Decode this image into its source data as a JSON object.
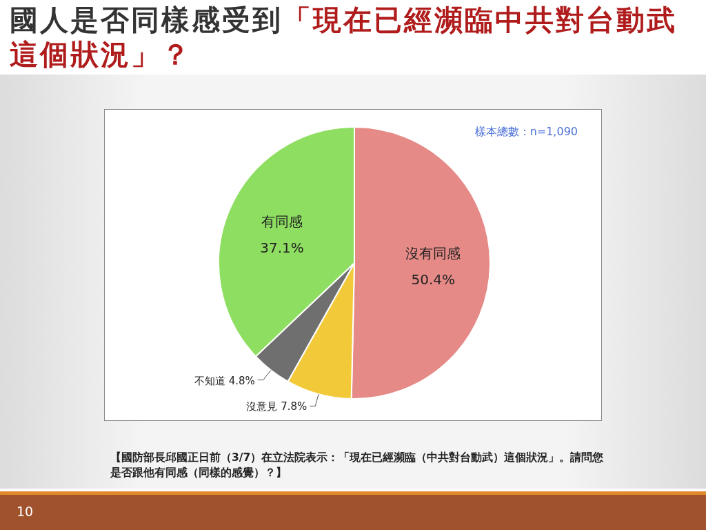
{
  "chart_data": {
    "type": "pie",
    "title": "國人是否同樣感受到「現在已經瀕臨中共對台動武這個狀況」？",
    "categories": [
      "沒有同感",
      "沒意見",
      "不知道",
      "有同感"
    ],
    "values": [
      50.4,
      7.8,
      4.8,
      37.1
    ],
    "colors": [
      "#e58a87",
      "#f2c938",
      "#6f6f6f",
      "#8edf61"
    ],
    "value_labels": [
      "50.4%",
      "7.8%",
      "4.8%",
      "37.1%"
    ],
    "annotations": [
      "樣本總數：n=1,090",
      "【國防部長邱國正日前（3/7）在立法院表示：「現在已經瀕臨（中共對台動武）這個狀況」。請問您是否跟他有同感（同樣的感覺）？】",
      "10"
    ]
  }
}
